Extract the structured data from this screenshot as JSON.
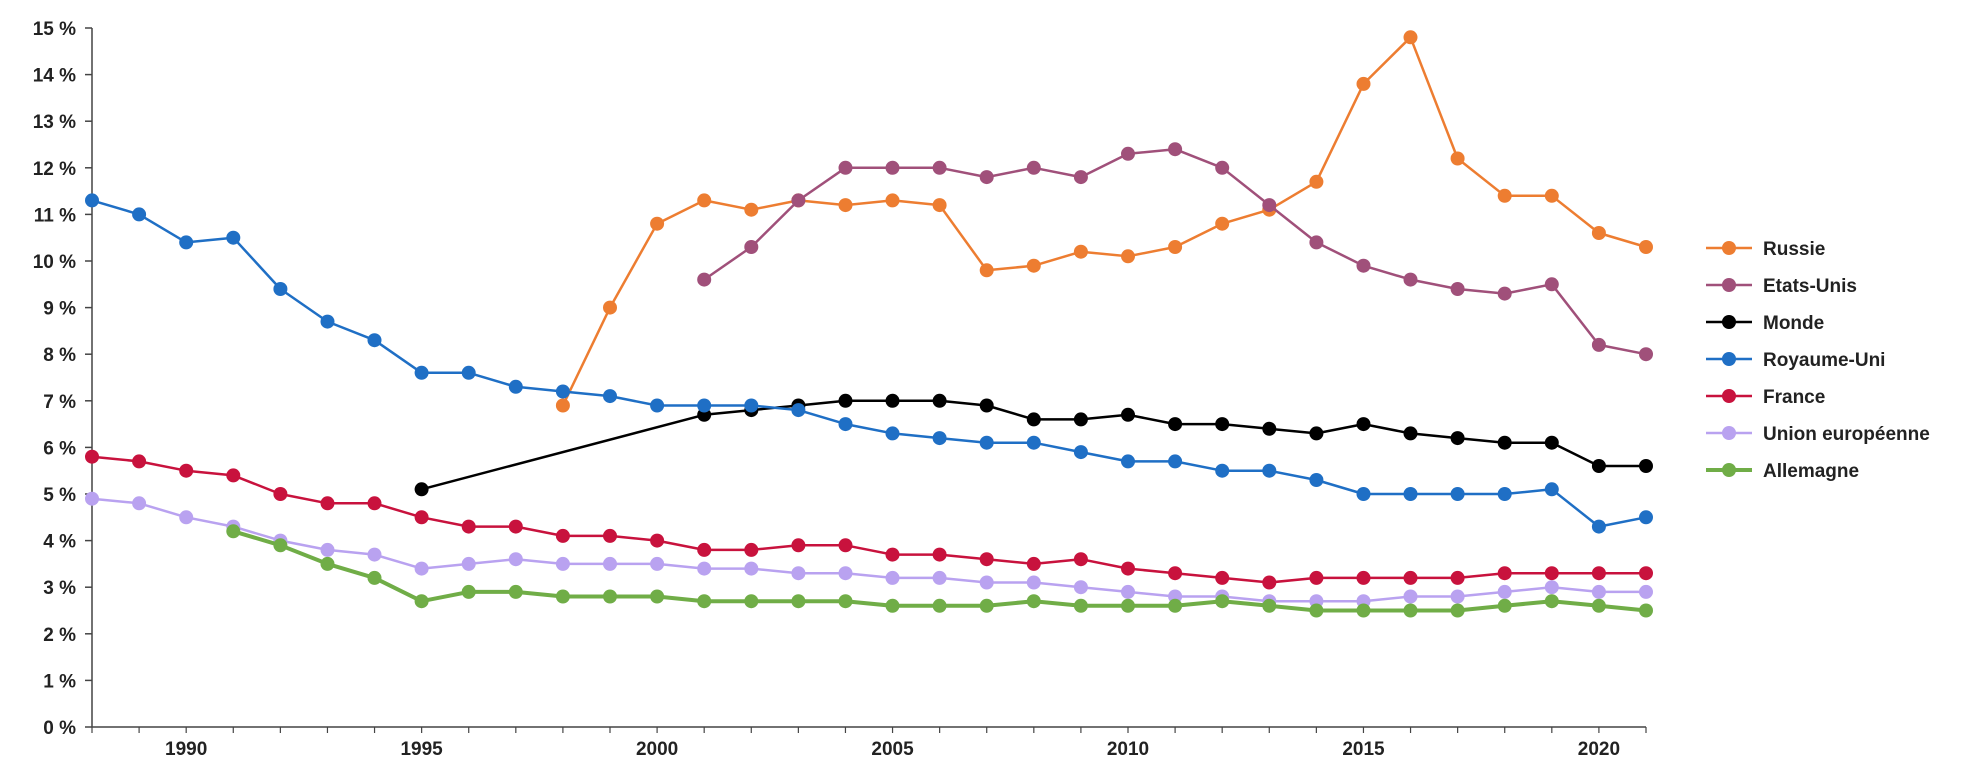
{
  "chart_data": {
    "type": "line",
    "title": "",
    "xlabel": "",
    "ylabel": "",
    "xlim": [
      1988,
      2021
    ],
    "ylim": [
      0,
      15
    ],
    "x_ticks": [
      1990,
      1995,
      2000,
      2005,
      2010,
      2015,
      2020
    ],
    "y_ticks": [
      0,
      1,
      2,
      3,
      4,
      5,
      6,
      7,
      8,
      9,
      10,
      11,
      12,
      13,
      14,
      15
    ],
    "y_tick_suffix": " %",
    "grid": false,
    "legend_position": "right",
    "series": [
      {
        "name": "Russie",
        "color": "#ED7D31",
        "x": [
          1998,
          1999,
          2000,
          2001,
          2002,
          2003,
          2004,
          2005,
          2006,
          2007,
          2008,
          2009,
          2010,
          2011,
          2012,
          2013,
          2014,
          2015,
          2016,
          2017,
          2018,
          2019,
          2020,
          2021
        ],
        "values": [
          6.9,
          9.0,
          10.8,
          11.3,
          11.1,
          11.3,
          11.2,
          11.3,
          11.2,
          9.8,
          9.9,
          10.2,
          10.1,
          10.3,
          10.8,
          11.1,
          11.7,
          13.8,
          14.8,
          12.2,
          11.4,
          11.4,
          10.6,
          10.3
        ]
      },
      {
        "name": "Etats-Unis",
        "color": "#A0507A",
        "x": [
          2001,
          2002,
          2003,
          2004,
          2005,
          2006,
          2007,
          2008,
          2009,
          2010,
          2011,
          2012,
          2013,
          2014,
          2015,
          2016,
          2017,
          2018,
          2019,
          2020,
          2021
        ],
        "values": [
          9.6,
          10.3,
          11.3,
          12.0,
          12.0,
          12.0,
          11.8,
          12.0,
          11.8,
          12.3,
          12.4,
          12.0,
          11.2,
          10.4,
          9.9,
          9.6,
          9.4,
          9.3,
          9.5,
          8.2,
          8.0
        ]
      },
      {
        "name": "Monde",
        "color": "#000000",
        "x": [
          1995,
          2001,
          2002,
          2003,
          2004,
          2005,
          2006,
          2007,
          2008,
          2009,
          2010,
          2011,
          2012,
          2013,
          2014,
          2015,
          2016,
          2017,
          2018,
          2019,
          2020,
          2021
        ],
        "values": [
          5.1,
          6.7,
          6.8,
          6.9,
          7.0,
          7.0,
          7.0,
          6.9,
          6.6,
          6.6,
          6.7,
          6.5,
          6.5,
          6.4,
          6.3,
          6.5,
          6.3,
          6.2,
          6.1,
          6.1,
          5.6,
          5.6
        ]
      },
      {
        "name": "Royaume-Uni",
        "color": "#1F6FC5",
        "x": [
          1988,
          1989,
          1990,
          1991,
          1992,
          1993,
          1994,
          1995,
          1996,
          1997,
          1998,
          1999,
          2000,
          2001,
          2002,
          2003,
          2004,
          2005,
          2006,
          2007,
          2008,
          2009,
          2010,
          2011,
          2012,
          2013,
          2014,
          2015,
          2016,
          2017,
          2018,
          2019,
          2020,
          2021
        ],
        "values": [
          11.3,
          11.0,
          10.4,
          10.5,
          9.4,
          8.7,
          8.3,
          7.6,
          7.6,
          7.3,
          7.2,
          7.1,
          6.9,
          6.9,
          6.9,
          6.8,
          6.5,
          6.3,
          6.2,
          6.1,
          6.1,
          5.9,
          5.7,
          5.7,
          5.5,
          5.5,
          5.3,
          5.0,
          5.0,
          5.0,
          5.0,
          5.1,
          4.3,
          4.5
        ]
      },
      {
        "name": "France",
        "color": "#C8123D",
        "x": [
          1988,
          1989,
          1990,
          1991,
          1992,
          1993,
          1994,
          1995,
          1996,
          1997,
          1998,
          1999,
          2000,
          2001,
          2002,
          2003,
          2004,
          2005,
          2006,
          2007,
          2008,
          2009,
          2010,
          2011,
          2012,
          2013,
          2014,
          2015,
          2016,
          2017,
          2018,
          2019,
          2020,
          2021
        ],
        "values": [
          5.8,
          5.7,
          5.5,
          5.4,
          5.0,
          4.8,
          4.8,
          4.5,
          4.3,
          4.3,
          4.1,
          4.1,
          4.0,
          3.8,
          3.8,
          3.9,
          3.9,
          3.7,
          3.7,
          3.6,
          3.5,
          3.6,
          3.4,
          3.3,
          3.2,
          3.1,
          3.2,
          3.2,
          3.2,
          3.2,
          3.3,
          3.3,
          3.3,
          3.3
        ]
      },
      {
        "name": "Union européenne",
        "color": "#B9A2F0",
        "x": [
          1988,
          1989,
          1990,
          1991,
          1992,
          1993,
          1994,
          1995,
          1996,
          1997,
          1998,
          1999,
          2000,
          2001,
          2002,
          2003,
          2004,
          2005,
          2006,
          2007,
          2008,
          2009,
          2010,
          2011,
          2012,
          2013,
          2014,
          2015,
          2016,
          2017,
          2018,
          2019,
          2020,
          2021
        ],
        "values": [
          4.9,
          4.8,
          4.5,
          4.3,
          4.0,
          3.8,
          3.7,
          3.4,
          3.5,
          3.6,
          3.5,
          3.5,
          3.5,
          3.4,
          3.4,
          3.3,
          3.3,
          3.2,
          3.2,
          3.1,
          3.1,
          3.0,
          2.9,
          2.8,
          2.8,
          2.7,
          2.7,
          2.7,
          2.8,
          2.8,
          2.9,
          3.0,
          2.9,
          2.9
        ]
      },
      {
        "name": "Allemagne",
        "color": "#70AD47",
        "x": [
          1991,
          1992,
          1993,
          1994,
          1995,
          1996,
          1997,
          1998,
          1999,
          2000,
          2001,
          2002,
          2003,
          2004,
          2005,
          2006,
          2007,
          2008,
          2009,
          2010,
          2011,
          2012,
          2013,
          2014,
          2015,
          2016,
          2017,
          2018,
          2019,
          2020,
          2021
        ],
        "values": [
          4.2,
          3.9,
          3.5,
          3.2,
          2.7,
          2.9,
          2.9,
          2.8,
          2.8,
          2.8,
          2.7,
          2.7,
          2.7,
          2.7,
          2.6,
          2.6,
          2.6,
          2.7,
          2.6,
          2.6,
          2.6,
          2.7,
          2.6,
          2.5,
          2.5,
          2.5,
          2.5,
          2.6,
          2.7,
          2.6,
          2.5
        ]
      }
    ]
  }
}
